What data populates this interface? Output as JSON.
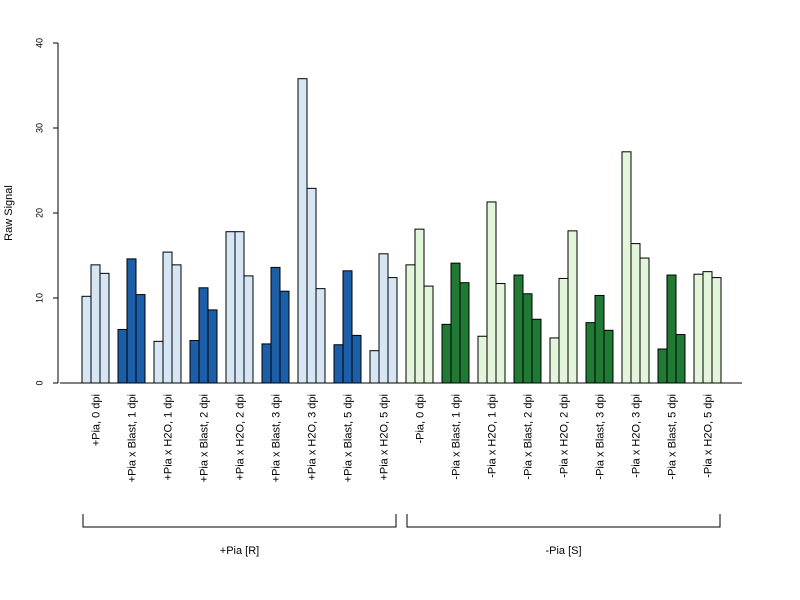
{
  "chart_data": {
    "type": "bar",
    "ylabel": "Raw Signal",
    "ylim": [
      0,
      40
    ],
    "yticks": [
      0,
      10,
      20,
      30,
      40
    ],
    "bars_per_category": 3,
    "colors": {
      "light_blue": "#d6e6f5",
      "dark_blue": "#1c5ea8",
      "light_green": "#e3f5da",
      "dark_green": "#217a34"
    },
    "categories": [
      {
        "label": "+Pia, 0 dpi",
        "values": [
          10.2,
          13.9,
          12.9
        ],
        "color": "light_blue"
      },
      {
        "label": "+Pia x Blast, 1 dpi",
        "values": [
          6.3,
          14.6,
          10.4
        ],
        "color": "dark_blue"
      },
      {
        "label": "+Pia x H2O, 1 dpi",
        "values": [
          4.9,
          15.4,
          13.9
        ],
        "color": "light_blue"
      },
      {
        "label": "+Pia x Blast, 2 dpi",
        "values": [
          5.0,
          11.2,
          8.6
        ],
        "color": "dark_blue"
      },
      {
        "label": "+Pia x H2O, 2 dpi",
        "values": [
          17.8,
          17.8,
          12.6
        ],
        "color": "light_blue"
      },
      {
        "label": "+Pia x Blast, 3 dpi",
        "values": [
          4.6,
          13.6,
          10.8
        ],
        "color": "dark_blue"
      },
      {
        "label": "+Pia x H2O, 3 dpi",
        "values": [
          35.8,
          22.9,
          11.1
        ],
        "color": "light_blue"
      },
      {
        "label": "+Pia x Blast, 5 dpi",
        "values": [
          4.5,
          13.2,
          5.6
        ],
        "color": "dark_blue"
      },
      {
        "label": "+Pia x H2O, 5 dpi",
        "values": [
          3.8,
          15.2,
          12.4
        ],
        "color": "light_blue"
      },
      {
        "label": "-Pia, 0 dpi",
        "values": [
          13.9,
          18.1,
          11.4
        ],
        "color": "light_green"
      },
      {
        "label": "-Pia x Blast, 1 dpi",
        "values": [
          6.9,
          14.1,
          11.8
        ],
        "color": "dark_green"
      },
      {
        "label": "-Pia x H2O, 1 dpi",
        "values": [
          5.5,
          21.3,
          11.7
        ],
        "color": "light_green"
      },
      {
        "label": "-Pia x Blast, 2 dpi",
        "values": [
          12.7,
          10.5,
          7.5
        ],
        "color": "dark_green"
      },
      {
        "label": "-Pia x H2O, 2 dpi",
        "values": [
          5.3,
          12.3,
          17.9
        ],
        "color": "light_green"
      },
      {
        "label": "-Pia x Blast, 3 dpi",
        "values": [
          7.1,
          10.3,
          6.2
        ],
        "color": "dark_green"
      },
      {
        "label": "-Pia x H2O, 3 dpi",
        "values": [
          27.2,
          16.4,
          14.7
        ],
        "color": "light_green"
      },
      {
        "label": "-Pia x Blast, 5 dpi",
        "values": [
          4.0,
          12.7,
          5.7
        ],
        "color": "dark_green"
      },
      {
        "label": "-Pia x H2O, 5 dpi",
        "values": [
          12.8,
          13.1,
          12.4
        ],
        "color": "light_green"
      }
    ],
    "groups": [
      {
        "label": "+Pia [R]",
        "first_category": 0,
        "last_category": 8
      },
      {
        "label": "-Pia [S]",
        "first_category": 9,
        "last_category": 17
      }
    ]
  }
}
